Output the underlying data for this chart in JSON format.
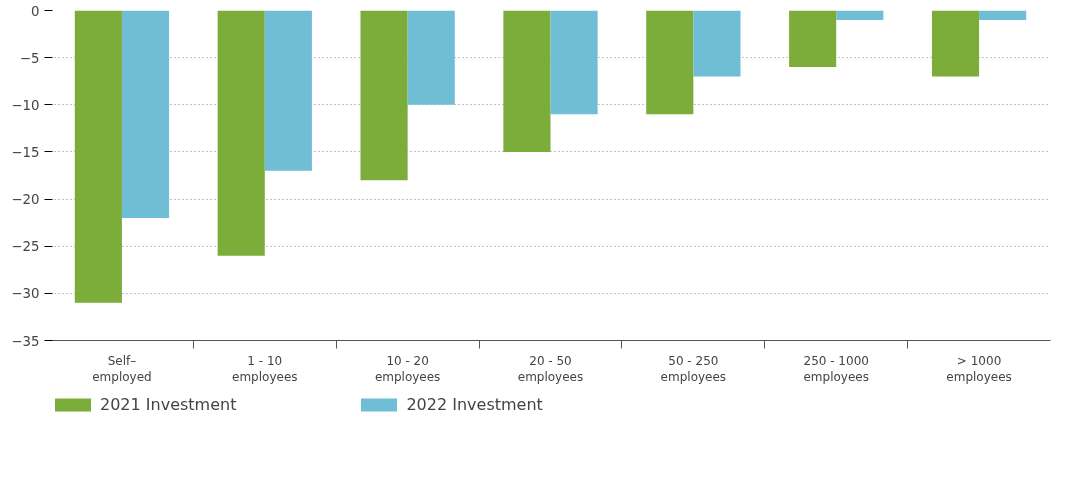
{
  "chart_data": {
    "type": "bar",
    "categories": [
      "Self–\nemployed",
      "1 - 10\nemployees",
      "10 - 20\nemployees",
      "20 - 50\nemployees",
      "50 - 250\nemployees",
      "250 - 1000\nemployees",
      "> 1000\nemployees"
    ],
    "series": [
      {
        "name": "2021 Investment",
        "color": "#7cac3a",
        "values": [
          -31,
          -26,
          -18,
          -15,
          -11,
          -6,
          -7
        ]
      },
      {
        "name": "2022 Investment",
        "color": "#6fbed6",
        "values": [
          -22,
          -17,
          -10,
          -11,
          -7,
          -1,
          -1
        ]
      }
    ],
    "ylim": [
      -35,
      0
    ],
    "yticks": [
      0,
      -5,
      -10,
      -15,
      -20,
      -25,
      -30,
      -35
    ],
    "grid": "y",
    "legend": "bottom left"
  }
}
